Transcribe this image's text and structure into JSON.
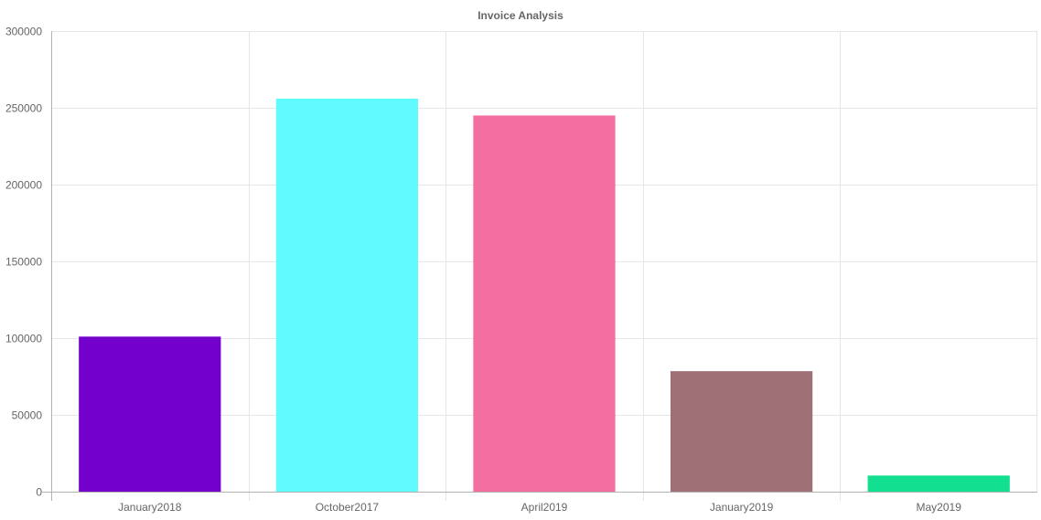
{
  "chart_data": {
    "type": "bar",
    "title": "Invoice Analysis",
    "xlabel": "",
    "ylabel": "",
    "categories": [
      "January2018",
      "October2017",
      "April2019",
      "January2019",
      "May2019"
    ],
    "values": [
      101000,
      256000,
      245000,
      78500,
      10500
    ],
    "bar_colors": [
      "#7400cc",
      "#5ffbff",
      "#f26fa0",
      "#9f7177",
      "#12e090"
    ],
    "ylim": [
      0,
      300000
    ],
    "yticks": [
      0,
      50000,
      100000,
      150000,
      200000,
      250000,
      300000
    ],
    "ytick_labels": [
      "0",
      "50000",
      "100000",
      "150000",
      "200000",
      "250000",
      "300000"
    ],
    "grid": true,
    "legend": "none"
  }
}
